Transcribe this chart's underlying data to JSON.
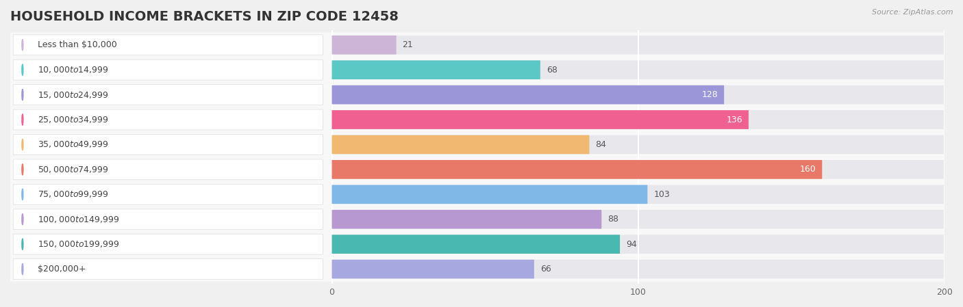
{
  "title": "HOUSEHOLD INCOME BRACKETS IN ZIP CODE 12458",
  "source": "Source: ZipAtlas.com",
  "categories": [
    "Less than $10,000",
    "$10,000 to $14,999",
    "$15,000 to $24,999",
    "$25,000 to $34,999",
    "$35,000 to $49,999",
    "$50,000 to $74,999",
    "$75,000 to $99,999",
    "$100,000 to $149,999",
    "$150,000 to $199,999",
    "$200,000+"
  ],
  "values": [
    21,
    68,
    128,
    136,
    84,
    160,
    103,
    88,
    94,
    66
  ],
  "bar_colors": [
    "#cdb5d8",
    "#5bc8c5",
    "#9b96d8",
    "#f06090",
    "#f0b870",
    "#e87868",
    "#80b8e8",
    "#b898d0",
    "#48b8b0",
    "#a8a8e0"
  ],
  "label_bg_color": "#ffffff",
  "xlim_left": -105,
  "xlim_right": 200,
  "xticks": [
    0,
    100,
    200
  ],
  "background_color": "#f0f0f0",
  "row_bg_color": "#f8f8f8",
  "bar_background_color": "#e8e8ec",
  "title_fontsize": 14,
  "label_fontsize": 9,
  "value_fontsize": 9,
  "white_text_bars": [
    2,
    3,
    5
  ]
}
